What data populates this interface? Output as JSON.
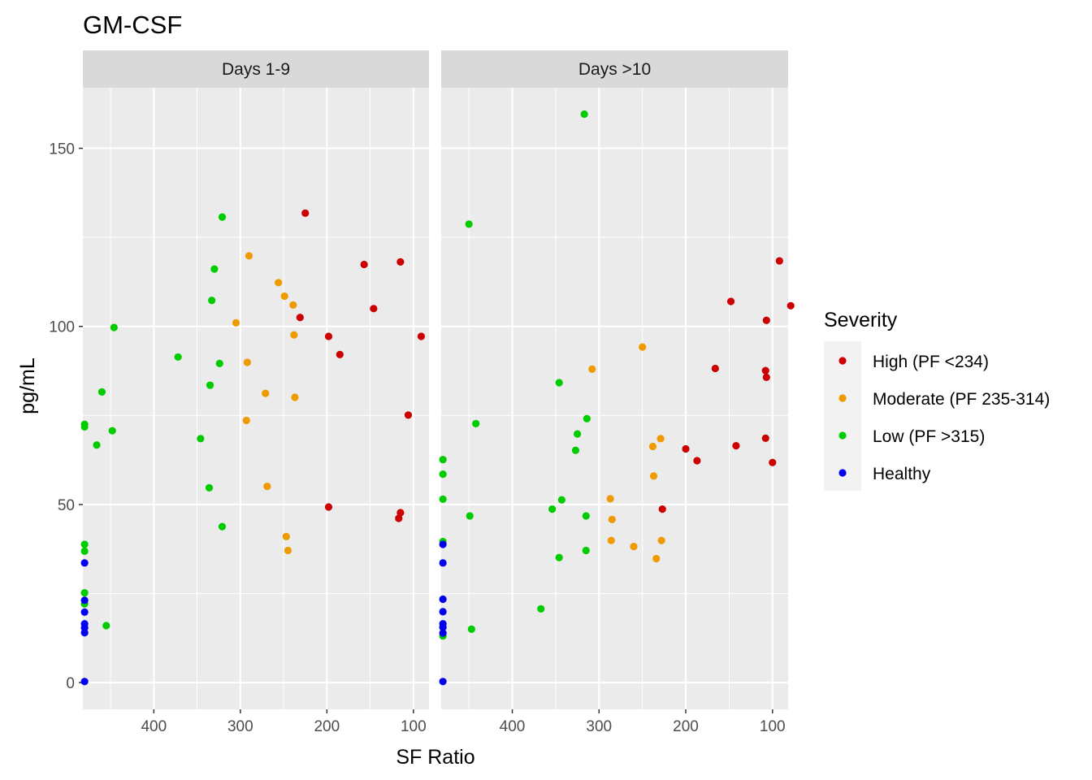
{
  "chart_data": {
    "type": "scatter",
    "title": "GM-CSF",
    "xlabel": "SF Ratio",
    "ylabel": "pg/mL",
    "x_reversed": true,
    "xlim": [
      482,
      82
    ],
    "ylim": [
      -7.5,
      167
    ],
    "xticks": [
      400,
      300,
      200,
      100
    ],
    "yticks": [
      0,
      50,
      100,
      150
    ],
    "grid": true,
    "legend_position": "right",
    "legend_title": "Severity",
    "series": [
      {
        "name": "High (PF <234)",
        "color": "#CC0000"
      },
      {
        "name": "Moderate (PF 235-314)",
        "color": "#EE9A00"
      },
      {
        "name": "Low (PF >315)",
        "color": "#00CC00"
      },
      {
        "name": "Healthy",
        "color": "#0000EE"
      }
    ],
    "facets": [
      {
        "label": "Days 1-9",
        "points": {
          "High (PF <234)": [
            [
              225,
              131.8
            ],
            [
              231,
              102.5
            ],
            [
              198,
              97.2
            ],
            [
              185,
              92.1
            ],
            [
              157,
              117.4
            ],
            [
              146,
              105.0
            ],
            [
              115,
              118.1
            ],
            [
              91,
              97.2
            ],
            [
              106,
              75.1
            ],
            [
              198,
              49.3
            ],
            [
              115,
              47.7
            ],
            [
              117,
              46.1
            ]
          ],
          "Moderate (PF 235-314)": [
            [
              290,
              119.8
            ],
            [
              256,
              112.3
            ],
            [
              249,
              108.5
            ],
            [
              239,
              106.0
            ],
            [
              305,
              101.0
            ],
            [
              238,
              97.6
            ],
            [
              292,
              89.9
            ],
            [
              271,
              81.2
            ],
            [
              237,
              80.1
            ],
            [
              293,
              73.6
            ],
            [
              269,
              55.1
            ],
            [
              247,
              41.0
            ],
            [
              245,
              37.1
            ]
          ],
          "Low (PF >315)": [
            [
              321,
              130.7
            ],
            [
              330,
              116.1
            ],
            [
              333,
              107.3
            ],
            [
              446,
              99.7
            ],
            [
              372,
              91.4
            ],
            [
              324,
              89.6
            ],
            [
              335,
              83.5
            ],
            [
              460,
              81.6
            ],
            [
              480,
              72.5
            ],
            [
              480,
              71.8
            ],
            [
              448,
              70.7
            ],
            [
              466,
              66.7
            ],
            [
              346,
              68.5
            ],
            [
              336,
              54.7
            ],
            [
              321,
              43.8
            ],
            [
              480,
              38.8
            ],
            [
              480,
              36.9
            ],
            [
              480,
              25.2
            ],
            [
              480,
              22.1
            ],
            [
              455,
              16.0
            ]
          ],
          "Healthy": [
            [
              480,
              33.6
            ],
            [
              480,
              23.1
            ],
            [
              480,
              19.8
            ],
            [
              480,
              16.5
            ],
            [
              480,
              15.4
            ],
            [
              480,
              14.0
            ],
            [
              480,
              0.3
            ]
          ]
        }
      },
      {
        "label": "Days >10",
        "points": {
          "High (PF <234)": [
            [
              92,
              118.4
            ],
            [
              79,
              105.8
            ],
            [
              148,
              107.0
            ],
            [
              107,
              101.7
            ],
            [
              166,
              88.2
            ],
            [
              108,
              87.6
            ],
            [
              107,
              85.7
            ],
            [
              142,
              66.5
            ],
            [
              200,
              65.6
            ],
            [
              187,
              62.3
            ],
            [
              108,
              68.6
            ],
            [
              100,
              61.8
            ],
            [
              227,
              48.7
            ]
          ],
          "Moderate (PF 235-314)": [
            [
              250,
              94.2
            ],
            [
              308,
              88.0
            ],
            [
              229,
              68.5
            ],
            [
              238,
              66.3
            ],
            [
              237,
              58.0
            ],
            [
              287,
              51.6
            ],
            [
              285,
              45.8
            ],
            [
              286,
              39.9
            ],
            [
              260,
              38.2
            ],
            [
              228,
              39.9
            ],
            [
              234,
              34.8
            ]
          ],
          "Low (PF >315)": [
            [
              317,
              159.6
            ],
            [
              450,
              128.7
            ],
            [
              346,
              84.2
            ],
            [
              442,
              72.7
            ],
            [
              314,
              74.1
            ],
            [
              325,
              69.8
            ],
            [
              327,
              65.2
            ],
            [
              480,
              62.6
            ],
            [
              480,
              58.5
            ],
            [
              480,
              51.5
            ],
            [
              343,
              51.3
            ],
            [
              354,
              48.7
            ],
            [
              449,
              46.8
            ],
            [
              315,
              46.8
            ],
            [
              480,
              39.6
            ],
            [
              346,
              35.1
            ],
            [
              315,
              37.1
            ],
            [
              367,
              20.7
            ],
            [
              447,
              15.0
            ],
            [
              480,
              13.1
            ]
          ],
          "Healthy": [
            [
              480,
              38.8
            ],
            [
              480,
              33.6
            ],
            [
              480,
              23.4
            ],
            [
              480,
              19.9
            ],
            [
              480,
              16.5
            ],
            [
              480,
              15.5
            ],
            [
              480,
              13.9
            ],
            [
              480,
              0.3
            ]
          ]
        }
      }
    ]
  }
}
